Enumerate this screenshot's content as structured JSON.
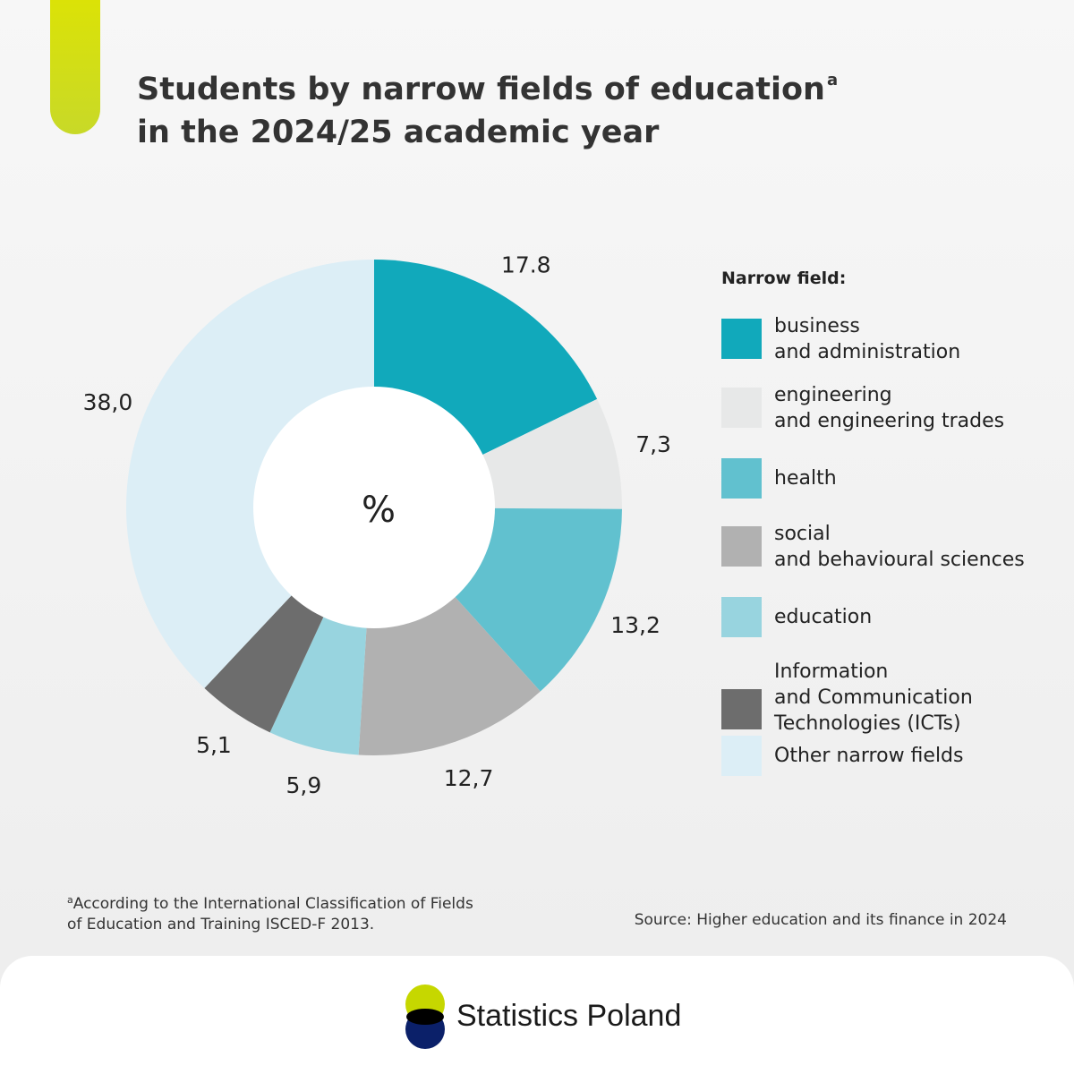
{
  "title": {
    "line1": "Students by narrow fields of education",
    "line1_superscript": "a",
    "line2": "in the 2024/25 academic year"
  },
  "chart_data": {
    "type": "pie",
    "center_label": "%",
    "categories": [
      "business\nand administration",
      "engineering\nand engineering trades",
      "health",
      "social\nand behavioural sciences",
      "education",
      "Information\nand Communication\nTechnologies (ICTs)",
      "Other narrow fields"
    ],
    "values": [
      17.8,
      7.3,
      13.2,
      12.7,
      5.9,
      5.1,
      38.0
    ],
    "value_labels": [
      "17.8",
      "7,3",
      "13,2",
      "12,7",
      "5,9",
      "5,1",
      "38,0"
    ],
    "colors": [
      "#11a9bb",
      "#e7e8e8",
      "#61c1cf",
      "#b1b1b1",
      "#98d4df",
      "#6d6d6d",
      "#dceef6"
    ],
    "legend_title": "Narrow field:",
    "legend_position": "right"
  },
  "footnote": {
    "marker": "a",
    "text": "According to the International Classification of Fields\nof Education and Training ISCED-F 2013."
  },
  "source": "Source: Higher education and its finance in 2024",
  "footer": {
    "brand_name": "Statistics Poland",
    "logo_colors": {
      "top": "#c6d700",
      "bottom": "#0b2069"
    }
  }
}
